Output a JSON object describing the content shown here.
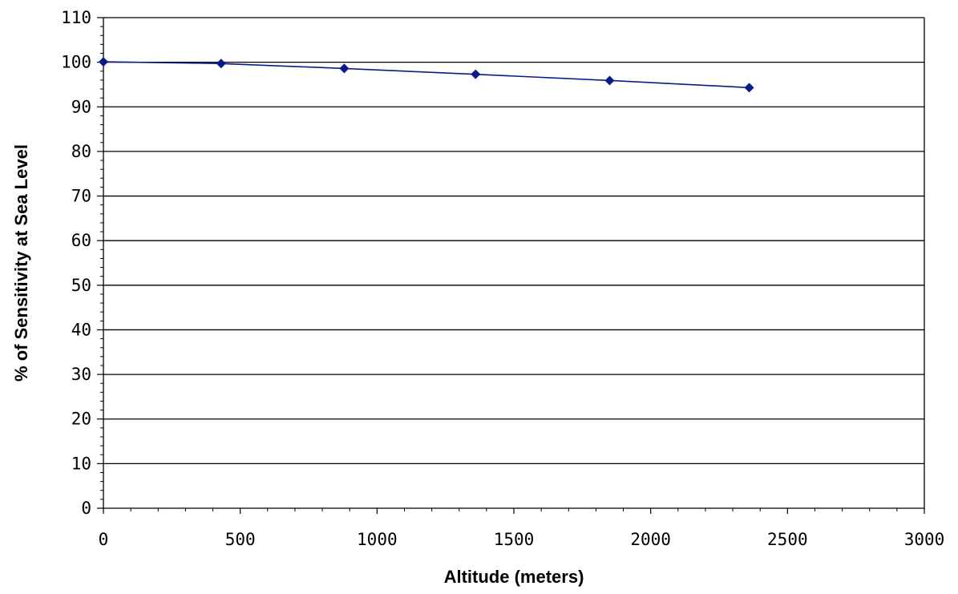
{
  "chart_data": {
    "type": "line",
    "title": "",
    "xlabel": "Altitude (meters)",
    "ylabel": "% of Sensitivity at Sea Level",
    "xlim": [
      0,
      3000
    ],
    "ylim": [
      0,
      110
    ],
    "x_ticks": [
      0,
      500,
      1000,
      1500,
      2000,
      2500,
      3000
    ],
    "y_ticks": [
      0,
      10,
      20,
      30,
      40,
      50,
      60,
      70,
      80,
      90,
      100,
      110
    ],
    "x_tick_labels": [
      "0",
      "500",
      "1000",
      "1500",
      "2000",
      "2500",
      "3000"
    ],
    "y_tick_labels": [
      "0",
      "10",
      "20",
      "30",
      "40",
      "50",
      "60",
      "70",
      "80",
      "90",
      "100",
      "110"
    ],
    "grid": "horizontal major gridlines",
    "legend": "none",
    "series": [
      {
        "color": "#0a1a8c",
        "marker": "diamond",
        "x": [
          0,
          430,
          880,
          1360,
          1850,
          2360
        ],
        "y": [
          100.1,
          99.7,
          98.6,
          97.3,
          95.9,
          94.3
        ]
      }
    ]
  }
}
